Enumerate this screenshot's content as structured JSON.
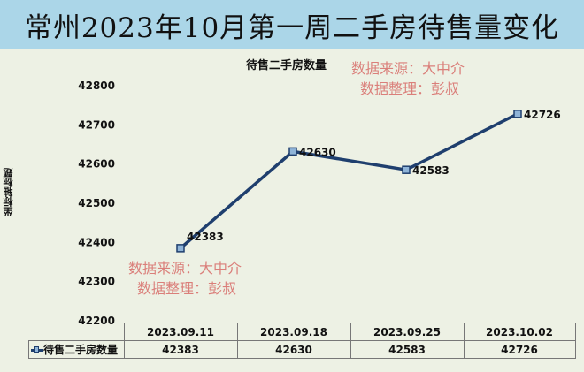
{
  "title": "常州2023年10月第一周二手房待售量变化",
  "watermark": {
    "line1": "数据来源：大中介",
    "line2": "数据整理：彭叔"
  },
  "colors": {
    "line": "#1f3f6e",
    "marker": "#8fb4d8",
    "title_bg": "#abd6e8",
    "background": "#edf1e4",
    "watermark": "#d9736f"
  },
  "chart_data": {
    "type": "line",
    "title": "待售二手房数量",
    "ylabel": "坐标轴标题",
    "categories": [
      "2023.09.11",
      "2023.09.18",
      "2023.09.25",
      "2023.10.02"
    ],
    "series": [
      {
        "name": "待售二手房数量",
        "values": [
          42383,
          42630,
          42583,
          42726
        ]
      }
    ],
    "ylim": [
      42200,
      42800
    ],
    "yticks": [
      42200,
      42300,
      42400,
      42500,
      42600,
      42700,
      42800
    ],
    "grid": false,
    "legend": "data-table",
    "data_labels": true,
    "marker": "square"
  }
}
